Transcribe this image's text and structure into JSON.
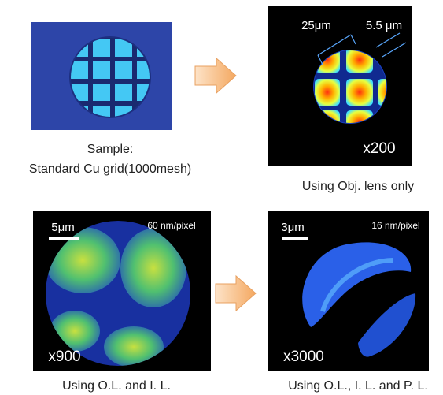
{
  "panels": [
    {
      "caption": [
        "Sample:",
        "Standard Cu grid(1000mesh)"
      ],
      "labels": []
    },
    {
      "caption": [
        "Using Obj. lens only"
      ],
      "labels": [
        "25μm",
        "5.5 μm",
        "x200"
      ]
    },
    {
      "caption": [
        "Using O.L. and I. L."
      ],
      "labels": [
        "5μm",
        "60 nm/pixel",
        "x900"
      ]
    },
    {
      "caption": [
        "Using O.L., I. L. and P. L."
      ],
      "labels": [
        "3μm",
        "16 nm/pixel",
        "x3000"
      ]
    }
  ]
}
